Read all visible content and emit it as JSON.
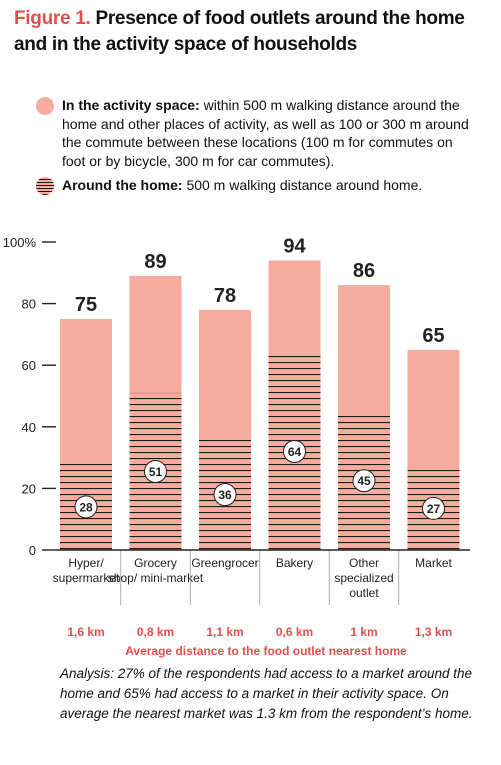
{
  "title": {
    "figure_label": "Figure 1.",
    "text": "Presence of food outlets around the home and in the activity space of households"
  },
  "legend": {
    "activity": {
      "name": "In the activity space:",
      "description": "within 500 m walking distance around the home and other places of activity, as well as 100 or 300 m around the commute between these locations (100 m for commutes on foot or by bicycle, 300 m for car commutes)."
    },
    "home": {
      "name": "Around the home:",
      "description": "500 m walking distance around home."
    }
  },
  "colors": {
    "bar": "#f7aca0",
    "hatch": "#1a1a1a",
    "accent": "#e0504a"
  },
  "chart_data": {
    "type": "bar",
    "categories": [
      "Hyper/ supermarket",
      "Grocery shop/ mini-market",
      "Greengrocer",
      "Bakery",
      "Other specialized outlet",
      "Market"
    ],
    "series": [
      {
        "name": "In the activity space",
        "values": [
          75,
          89,
          78,
          94,
          86,
          65
        ]
      },
      {
        "name": "Around the home",
        "values": [
          28,
          51,
          36,
          64,
          45,
          27
        ]
      }
    ],
    "distances": [
      "1,6 km",
      "0,8 km",
      "1,1 km",
      "0,6 km",
      "1 km",
      "1,3 km"
    ],
    "distance_label": "Average distance to the food outlet nearest home",
    "yticks": [
      "0",
      "20",
      "40",
      "60",
      "80",
      "100%"
    ],
    "ylim": [
      0,
      100
    ]
  },
  "analysis": "Analysis: 27% of the respondents had access to a market around the home and 65% had access to a market in their activity space. On average the nearest market was 1.3 km from the respondent’s home."
}
